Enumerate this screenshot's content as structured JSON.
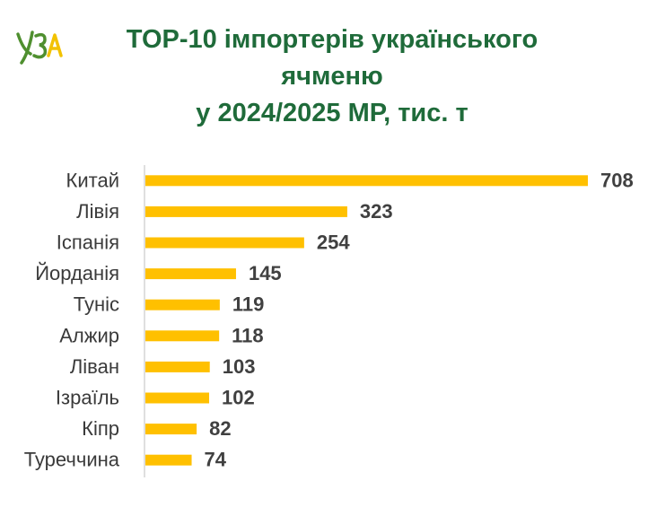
{
  "logo": {
    "text": "УЗА",
    "colors": {
      "green": "#4f8f2f",
      "yellow": "#f2c200"
    }
  },
  "title": {
    "line1": "TOP-10 імпортерів українського",
    "line2": "ячменю",
    "line3": "у 2024/2025 МР, тис. т"
  },
  "colors": {
    "title": "#1f6b3a",
    "bar": "#ffc000",
    "axis": "#bfbfbf"
  },
  "chart_data": {
    "type": "bar",
    "orientation": "horizontal",
    "categories": [
      "Китай",
      "Лівія",
      "Іспанія",
      "Йорданія",
      "Туніс",
      "Алжир",
      "Ліван",
      "Ізраїль",
      "Кіпр",
      "Туреччина"
    ],
    "values": [
      708,
      323,
      254,
      145,
      119,
      118,
      103,
      102,
      82,
      74
    ],
    "title": "TOP-10 імпортерів українського ячменю у 2024/2025 МР, тис. т",
    "xlabel": "",
    "ylabel": "",
    "xlim": [
      0,
      708
    ],
    "grid": false,
    "legend": "none",
    "data_labels": true
  }
}
